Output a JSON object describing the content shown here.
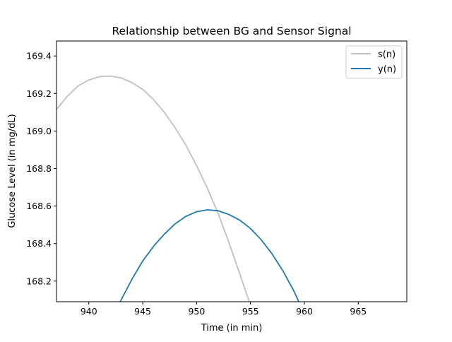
{
  "chart_data": {
    "type": "line",
    "title": "Relationship between BG and Sensor Signal",
    "xlabel": "Time (in min)",
    "ylabel": "Glucose Level (in mg/dL)",
    "xlim": [
      937,
      969.5
    ],
    "ylim": [
      168.09,
      169.48
    ],
    "xticks": [
      940,
      945,
      950,
      955,
      960,
      965
    ],
    "yticks": [
      168.2,
      168.4,
      168.6,
      168.8,
      169.0,
      169.2,
      169.4
    ],
    "grid": false,
    "legend_position": "top-right",
    "series": [
      {
        "name": "s(n)",
        "color": "#c0c0c0",
        "x": [
          937,
          938,
          939,
          940,
          941,
          942,
          943,
          944,
          945,
          946,
          947,
          948,
          949,
          950,
          951,
          952,
          953,
          954,
          955
        ],
        "y": [
          169.115,
          169.185,
          169.24,
          169.272,
          169.29,
          169.293,
          169.283,
          169.258,
          169.222,
          169.168,
          169.1,
          169.018,
          168.925,
          168.815,
          168.695,
          168.56,
          168.405,
          168.24,
          168.07
        ]
      },
      {
        "name": "y(n)",
        "color": "#1f77b4",
        "x": [
          942.5,
          943,
          944,
          945,
          946,
          947,
          948,
          949,
          950,
          951,
          952,
          953,
          954,
          955,
          956,
          957,
          958,
          959,
          960,
          960.5
        ],
        "y": [
          168.05,
          168.1,
          168.21,
          168.307,
          168.385,
          168.45,
          168.505,
          168.545,
          168.57,
          168.58,
          168.575,
          168.555,
          168.525,
          168.48,
          168.42,
          168.345,
          168.255,
          168.15,
          168.025,
          167.96
        ]
      }
    ]
  }
}
